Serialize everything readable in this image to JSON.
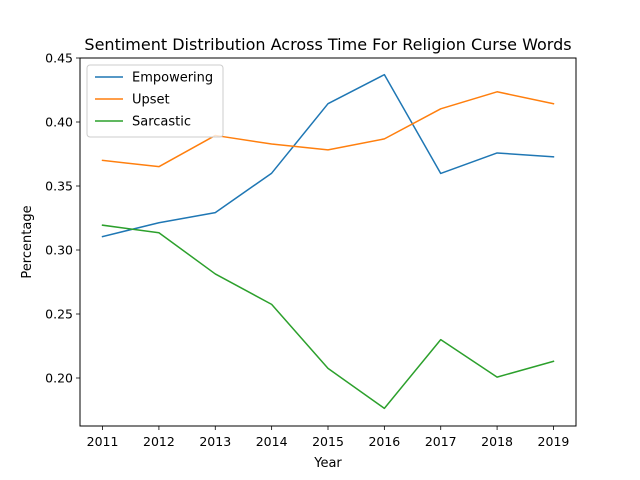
{
  "chart_data": {
    "type": "line",
    "title": "Sentiment Distribution Across Time For Religion Curse Words",
    "xlabel": "Year",
    "ylabel": "Percentage",
    "x": [
      2011,
      2012,
      2013,
      2014,
      2015,
      2016,
      2017,
      2018,
      2019
    ],
    "xticks": [
      "2011",
      "2012",
      "2013",
      "2014",
      "2015",
      "2016",
      "2017",
      "2018",
      "2019"
    ],
    "ylim": [
      0.1625,
      0.45
    ],
    "yticks": [
      "0.20",
      "0.25",
      "0.30",
      "0.35",
      "0.40",
      "0.45"
    ],
    "ytick_values": [
      0.2,
      0.25,
      0.3,
      0.35,
      0.4,
      0.45
    ],
    "grid": false,
    "legend_position": "upper left",
    "series": [
      {
        "name": "Empowering",
        "color": "#1f77b4",
        "values": [
          0.3105,
          0.3213,
          0.3292,
          0.36,
          0.4143,
          0.437,
          0.3598,
          0.3758,
          0.3728
        ]
      },
      {
        "name": "Upset",
        "color": "#ff7f0e",
        "values": [
          0.37,
          0.3651,
          0.3895,
          0.3828,
          0.3782,
          0.3868,
          0.4103,
          0.4236,
          0.4143
        ]
      },
      {
        "name": "Sarcastic",
        "color": "#2ca02c",
        "values": [
          0.3194,
          0.3135,
          0.2813,
          0.2575,
          0.2075,
          0.1763,
          0.23,
          0.2007,
          0.213
        ]
      }
    ]
  }
}
